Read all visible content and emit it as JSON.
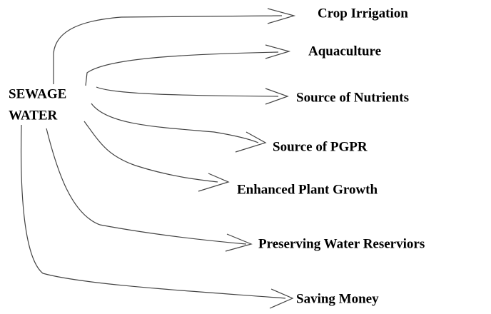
{
  "source": {
    "lines": [
      "SEWAGE",
      "WATER"
    ]
  },
  "targets": [
    "Crop Irrigation",
    "Aquaculture",
    "Source of Nutrients",
    "Source of PGPR",
    "Enhanced Plant Growth",
    "Preserving Water Reserviors",
    "Saving Money"
  ]
}
